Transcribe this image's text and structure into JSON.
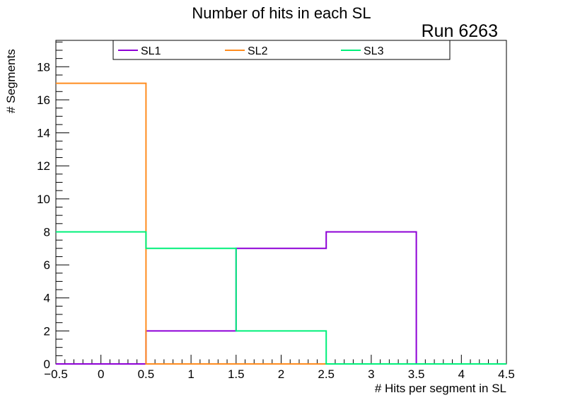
{
  "chart_data": {
    "type": "line",
    "title": "Number of hits in each SL",
    "annotation": "Run 6263",
    "xlabel": "# Hits per segment in SL",
    "ylabel": "# Segments",
    "xlim": [
      -0.5,
      4.5
    ],
    "ylim": [
      0,
      19.6
    ],
    "x_ticks": [
      -0.5,
      0,
      0.5,
      1,
      1.5,
      2,
      2.5,
      3,
      3.5,
      4,
      4.5
    ],
    "x_tick_labels": [
      "−0.5",
      "0",
      "0.5",
      "1",
      "1.5",
      "2",
      "2.5",
      "3",
      "3.5",
      "4",
      "4.5"
    ],
    "y_ticks": [
      0,
      2,
      4,
      6,
      8,
      10,
      12,
      14,
      16,
      18
    ],
    "y_tick_labels": [
      "0",
      "2",
      "4",
      "6",
      "8",
      "10",
      "12",
      "14",
      "16",
      "18"
    ],
    "bins": [
      0,
      1,
      2,
      3,
      4
    ],
    "series": [
      {
        "name": "SL1",
        "color": "#8e00d6",
        "values": [
          0,
          2,
          7,
          8,
          0
        ]
      },
      {
        "name": "SL2",
        "color": "#ff8c1f",
        "values": [
          17,
          0,
          0,
          0,
          0
        ]
      },
      {
        "name": "SL3",
        "color": "#00f07a",
        "values": [
          8,
          7,
          2,
          0,
          0
        ]
      }
    ],
    "legend_position": "top",
    "grid": false
  }
}
